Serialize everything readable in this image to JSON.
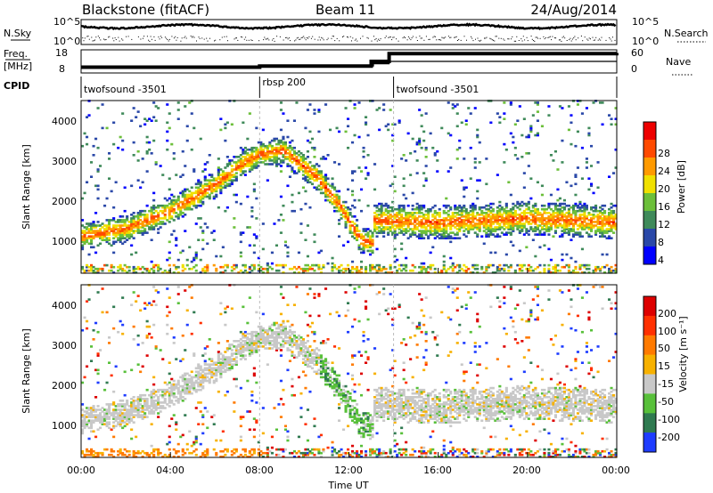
{
  "header": {
    "station": "Blackstone (fitACF)",
    "beam": "Beam 11",
    "date": "24/Aug/2014"
  },
  "top_panels": {
    "nsky_label": "N.Sky",
    "nsearch_label": "N.Search",
    "noise_ticks": [
      "10^5",
      "10^0"
    ],
    "freq_label": "Freq.",
    "freq_unit": "[MHz]",
    "freq_ticks": [
      "18",
      "8"
    ],
    "nave_label": "Nave",
    "nave_ticks": [
      "60",
      "0"
    ],
    "cpid_label": "CPID"
  },
  "cpid_segments": [
    {
      "name": "twofsound -3501",
      "start_h": 0.0,
      "end_h": 8.0
    },
    {
      "name": "rbsp 200",
      "start_h": 8.0,
      "end_h": 14.0
    },
    {
      "name": "twofsound -3501",
      "start_h": 14.0,
      "end_h": 24.0
    }
  ],
  "power_panel": {
    "ylabel": "Slant Range [km]",
    "yticks": [
      "4000",
      "3000",
      "2000",
      "1000"
    ],
    "colorbar_title": "Power [dB]",
    "colorbar_ticks": [
      "28",
      "24",
      "20",
      "16",
      "12",
      "8",
      "4"
    ],
    "colors": [
      "#0000ff",
      "#2a48a8",
      "#3f8a5a",
      "#6cbf3a",
      "#f0e000",
      "#ff9a00",
      "#ff4a00",
      "#ee0000"
    ]
  },
  "velocity_panel": {
    "ylabel": "Slant Range [km]",
    "yticks": [
      "4000",
      "3000",
      "2000",
      "1000"
    ],
    "colorbar_title": "Velocity [m s⁻¹]",
    "colorbar_ticks": [
      "200",
      "100",
      "50",
      "15",
      "-15",
      "-50",
      "-100",
      "-200"
    ],
    "colors": [
      "#1e3cff",
      "#2f7a50",
      "#58c03a",
      "#c8c8c8",
      "#f7b100",
      "#ff7a00",
      "#ff3000",
      "#dd0000"
    ]
  },
  "xaxis": {
    "label": "Time UT",
    "ticks": [
      "00:00",
      "04:00",
      "08:00",
      "12:00",
      "16:00",
      "20:00",
      "00:00"
    ]
  },
  "chart_data": {
    "type": "heatmap",
    "x_unit": "hours UT",
    "xlim": [
      0,
      24
    ],
    "ylim": [
      200,
      4500
    ],
    "series": [
      {
        "name": "Power",
        "unit": "dB",
        "range": [
          0,
          30
        ]
      },
      {
        "name": "Velocity",
        "unit": "m s^-1",
        "range": [
          -250,
          250
        ]
      }
    ],
    "main_echo_band_center_km": [
      [
        0,
        1100
      ],
      [
        2,
        1300
      ],
      [
        4,
        1750
      ],
      [
        6,
        2400
      ],
      [
        7,
        2850
      ],
      [
        8,
        3150
      ],
      [
        9,
        3250
      ],
      [
        10.5,
        2600
      ],
      [
        11.5,
        1900
      ],
      [
        12.5,
        1000
      ],
      [
        13.0,
        950
      ],
      [
        13.1,
        1500
      ],
      [
        16,
        1450
      ],
      [
        20,
        1550
      ],
      [
        24,
        1450
      ]
    ],
    "frequency_mhz": [
      [
        0,
        11
      ],
      [
        13,
        11
      ],
      [
        13.1,
        12
      ],
      [
        13.7,
        12
      ],
      [
        13.8,
        13
      ],
      [
        24,
        13
      ]
    ],
    "nave": [
      [
        0,
        15
      ],
      [
        8,
        18
      ],
      [
        13,
        30
      ],
      [
        13.8,
        50
      ],
      [
        24,
        52
      ]
    ]
  }
}
